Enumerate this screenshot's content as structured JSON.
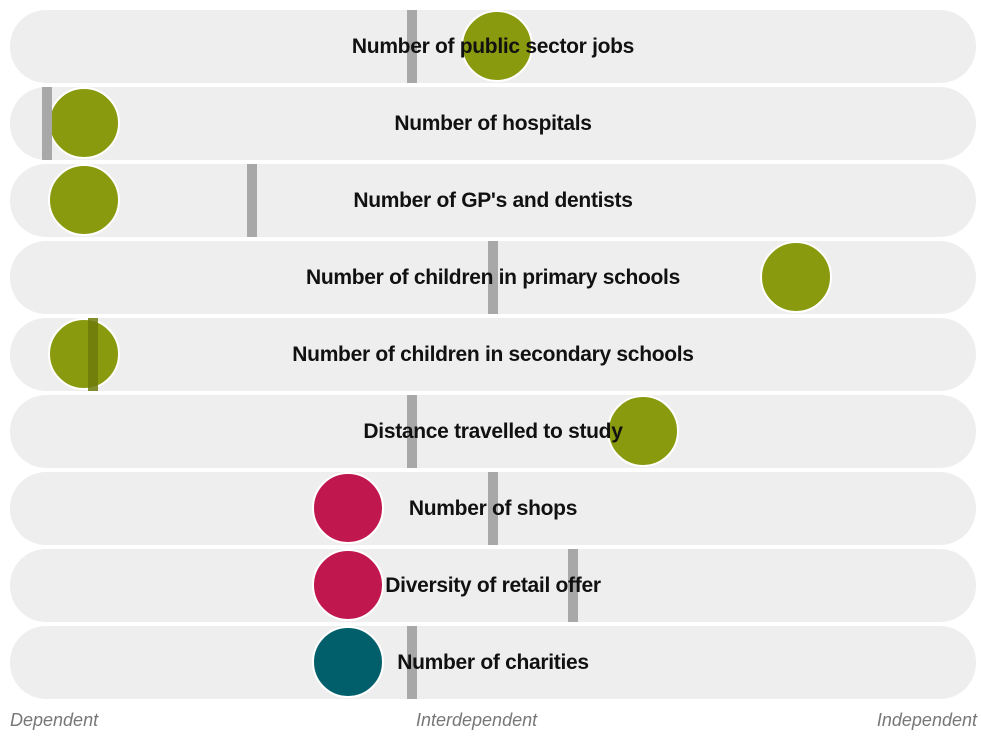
{
  "chart_data": {
    "type": "scatter",
    "axis_labels": {
      "left": "Dependent",
      "center": "Interdependent",
      "right": "Independent"
    },
    "xlim": [
      0,
      1
    ],
    "colors": {
      "olive": "#8a9a0e",
      "crimson": "#c0174f",
      "teal": "#005f6b",
      "benchmark": "#a8a8a8",
      "row_background": "#eeeeee"
    },
    "rows": [
      {
        "label": "Number of public sector jobs",
        "value": 0.505,
        "benchmark": 0.415,
        "color": "olive"
      },
      {
        "label": "Number of hospitals",
        "value": 0.04,
        "benchmark": 0.033,
        "color": "olive"
      },
      {
        "label": "Number of GP's and dentists",
        "value": 0.04,
        "benchmark": 0.248,
        "color": "olive"
      },
      {
        "label": "Number of children in primary schools",
        "value": 0.84,
        "benchmark": 0.5,
        "color": "olive"
      },
      {
        "label": "Number of children in secondary schools",
        "value": 0.04,
        "benchmark": 0.082,
        "color": "olive"
      },
      {
        "label": "Distance travelled to study",
        "value": 0.668,
        "benchmark": 0.415,
        "color": "olive"
      },
      {
        "label": "Number of shops",
        "value": 0.337,
        "benchmark": 0.5,
        "color": "crimson"
      },
      {
        "label": "Diversity of retail offer",
        "value": 0.337,
        "benchmark": 0.584,
        "color": "crimson"
      },
      {
        "label": "Number of charities",
        "value": 0.337,
        "benchmark": 0.415,
        "color": "teal"
      }
    ]
  }
}
